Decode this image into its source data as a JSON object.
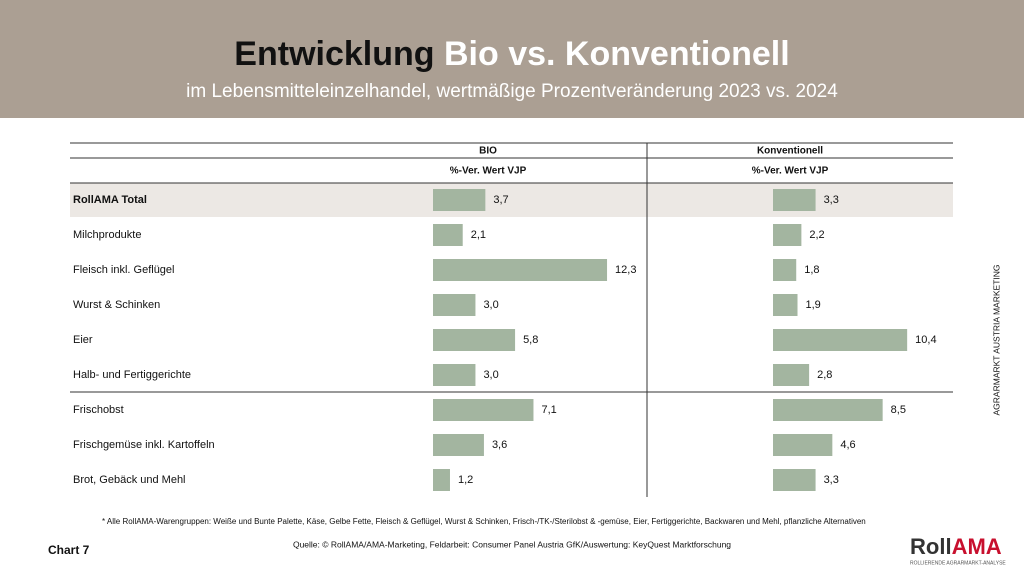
{
  "chart_data": {
    "type": "bar",
    "title": [
      "Entwicklung",
      "Bio vs. Konventionell"
    ],
    "subtitle": "im Lebensmitteleinzelhandel, wertmäßige Prozentveränderung 2023 vs. 2024",
    "column_subheader": "%-Ver. Wert VJP",
    "categories": [
      "RollAMA Total",
      "Milchprodukte",
      "Fleisch inkl. Geflügel",
      "Wurst & Schinken",
      "Eier",
      "Halb- und Fertiggerichte",
      "Frischobst",
      "Frischgemüse inkl. Kartoffeln",
      "Brot, Gebäck und Mehl"
    ],
    "series": [
      {
        "name": "BIO",
        "color": "#a3b5a0",
        "values": [
          3.7,
          2.1,
          12.3,
          3.0,
          5.8,
          3.0,
          7.1,
          3.6,
          1.2
        ],
        "value_labels": [
          "3,7",
          "2,1",
          "12,3",
          "3,0",
          "5,8",
          "3,0",
          "7,1",
          "3,6",
          "1,2"
        ]
      },
      {
        "name": "Konventionell",
        "color": "#a3b5a0",
        "values": [
          3.3,
          2.2,
          1.8,
          1.9,
          10.4,
          2.8,
          8.5,
          4.6,
          3.3
        ],
        "value_labels": [
          "3,3",
          "2,2",
          "1,8",
          "1,9",
          "10,4",
          "2,8",
          "8,5",
          "4,6",
          "3,3"
        ]
      }
    ],
    "footnote": "* Alle RollAMA-Warengruppen: Weiße und Bunte Palette, Käse, Gelbe Fette, Fleisch & Geflügel, Wurst & Schinken, Frisch-/TK-/Sterilobst & -gemüse, Eier, Fertiggerichte, Backwaren und Mehl, pflanzliche Alternativen",
    "source": "Quelle: © RollAMA/AMA-Marketing, Feldarbeit: Consumer Panel Austria GfK/Auswertung: KeyQuest Marktforschung",
    "chart_number": "Chart 7",
    "side_text": "AGRARMARKT AUSTRIA MARKETING",
    "logo": [
      "Roll",
      "AMA"
    ],
    "logo_tagline": "ROLLIERENDE AGRARMARKT-ANALYSE"
  }
}
